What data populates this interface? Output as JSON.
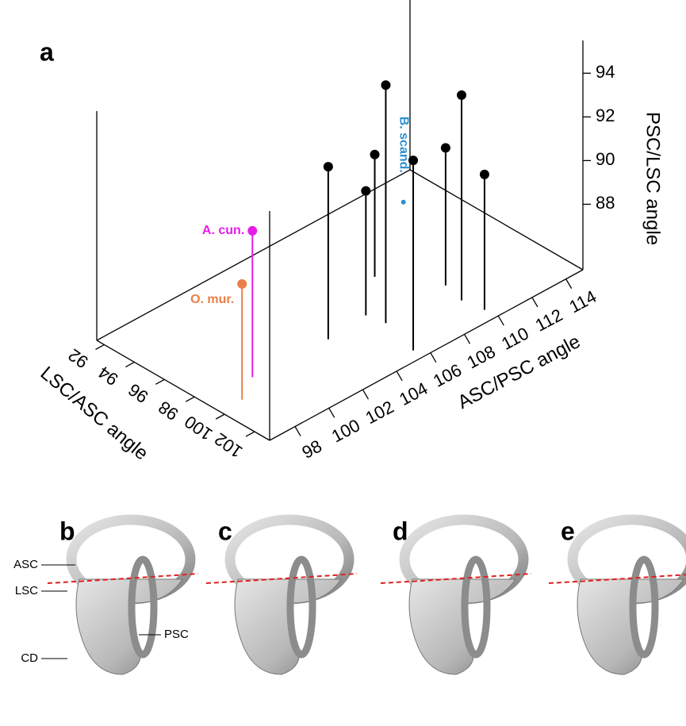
{
  "chart_data": {
    "type": "scatter3d",
    "panel_label": "a",
    "x_label": "ASC/PSC angle",
    "y_label": "LSC/ASC angle",
    "z_label": "PSC/LSC angle",
    "xlim": [
      96.5,
      115
    ],
    "ylim": [
      91.5,
      103
    ],
    "zlim": [
      85,
      95.5
    ],
    "xticks": [
      98,
      100,
      102,
      104,
      106,
      108,
      110,
      112,
      114
    ],
    "yticks": [
      92,
      94,
      96,
      98,
      100,
      102
    ],
    "zticks": [
      88,
      90,
      92,
      94
    ],
    "series": [
      {
        "name": "A. cun.",
        "color": "#e81ce8",
        "x": [
          99.3
        ],
        "y": [
          98.7
        ],
        "z": [
          91.7
        ]
      },
      {
        "name": "O. mur.",
        "color": "#e8804a",
        "x": [
          97.8
        ],
        "y": [
          99.7
        ],
        "z": [
          90.3
        ]
      },
      {
        "name": "B. scand.",
        "color": "#2a8fd0",
        "x": [
          113.1
        ],
        "y": [
          93.2
        ],
        "z": [
          85
        ]
      },
      {
        "color": "#000000",
        "x": [
          103.6,
          106.0,
          108.3,
          106.2,
          105.6,
          110.0,
          109.7,
          109.9
        ],
        "y": [
          98.9,
          98.7,
          96.7,
          99.8,
          102.3,
          99.5,
          100.9,
          102.2
        ],
        "z": [
          92.9,
          90.7,
          90.6,
          95.9,
          93.7,
          91.3,
          94.4,
          91.2
        ]
      }
    ]
  },
  "panels": [
    {
      "label": "b",
      "annotations": [
        "ASC",
        "LSC",
        "PSC",
        "CD"
      ]
    },
    {
      "label": "c"
    },
    {
      "label": "d"
    },
    {
      "label": "e"
    }
  ]
}
